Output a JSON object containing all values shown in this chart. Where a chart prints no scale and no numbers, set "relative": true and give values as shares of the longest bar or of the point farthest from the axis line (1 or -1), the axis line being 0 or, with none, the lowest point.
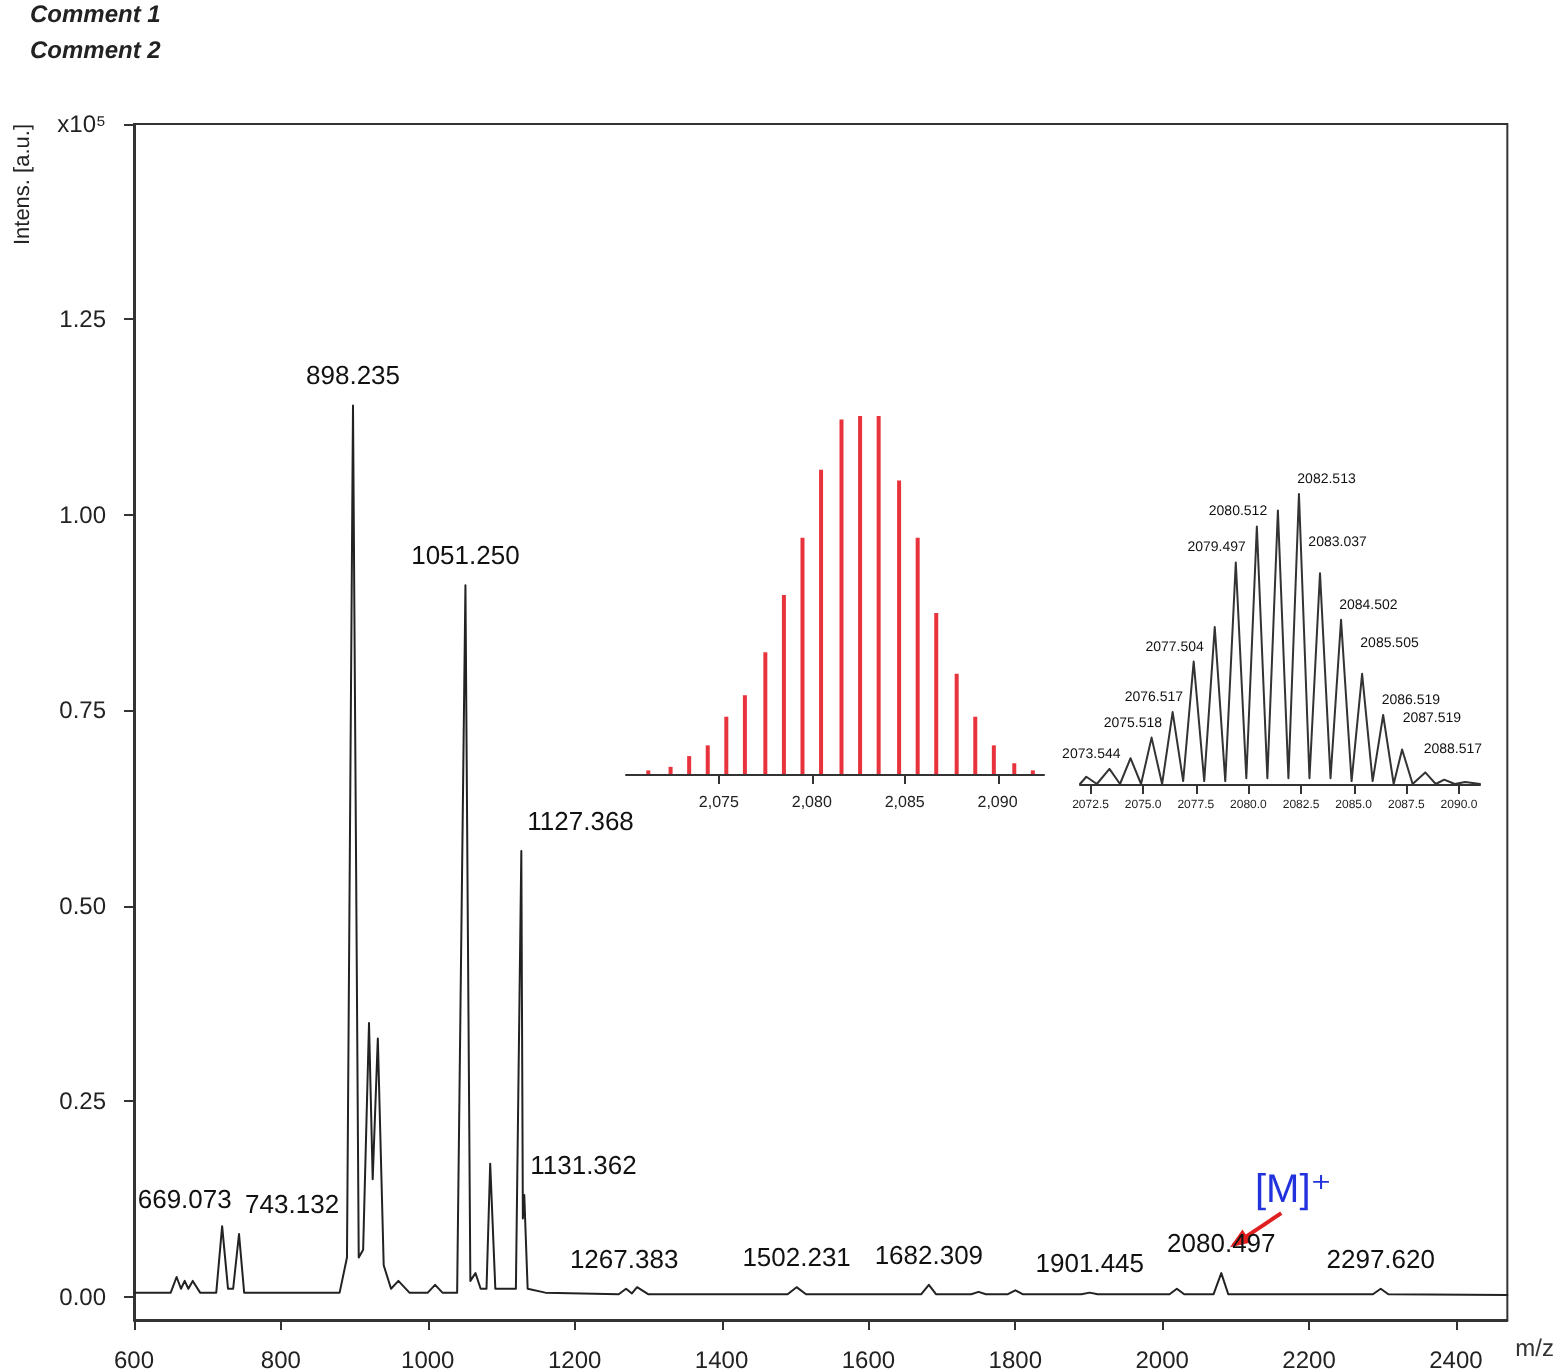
{
  "chart_data": [
    {
      "type": "line",
      "title": "Comment 1",
      "subtitle": "Comment 2",
      "ylabel": "Intens. [a.u.]",
      "xlabel": "m/z",
      "color": "#222222",
      "marker": "none",
      "grid": false,
      "x": [
        600,
        650,
        658,
        664,
        669,
        674,
        680,
        690,
        712,
        720,
        728,
        735,
        743,
        750,
        800,
        880,
        890,
        898.2,
        906,
        912,
        920,
        925,
        932,
        940,
        950,
        960,
        975,
        1000,
        1010,
        1020,
        1040,
        1051.3,
        1058,
        1065,
        1072,
        1080,
        1085,
        1092,
        1120,
        1127.4,
        1129.5,
        1131.4,
        1136,
        1160,
        1260,
        1270,
        1278,
        1285,
        1300,
        1490,
        1502.2,
        1515,
        1672,
        1682.3,
        1692,
        1740,
        1750,
        1760,
        1790,
        1800,
        1810,
        1890,
        1901.4,
        1912,
        2010,
        2020,
        2030,
        2070,
        2080.5,
        2090,
        2287,
        2297.6,
        2308,
        2470
      ],
      "values": [
        0.005,
        0.005,
        0.025,
        0.01,
        0.02,
        0.01,
        0.02,
        0.005,
        0.005,
        0.09,
        0.01,
        0.01,
        0.08,
        0.005,
        0.005,
        0.005,
        0.05,
        1.14,
        0.05,
        0.06,
        0.35,
        0.15,
        0.33,
        0.04,
        0.01,
        0.02,
        0.005,
        0.005,
        0.015,
        0.005,
        0.005,
        0.91,
        0.02,
        0.03,
        0.01,
        0.01,
        0.17,
        0.01,
        0.01,
        0.57,
        0.1,
        0.13,
        0.01,
        0.005,
        0.003,
        0.01,
        0.004,
        0.012,
        0.003,
        0.003,
        0.012,
        0.003,
        0.003,
        0.015,
        0.003,
        0.003,
        0.006,
        0.003,
        0.003,
        0.008,
        0.003,
        0.003,
        0.005,
        0.003,
        0.003,
        0.01,
        0.003,
        0.003,
        0.03,
        0.003,
        0.003,
        0.01,
        0.003,
        0.002
      ],
      "xlim": [
        600,
        2470
      ],
      "xticks": [
        600,
        800,
        1000,
        1200,
        1400,
        1600,
        1800,
        2000,
        2200,
        2400
      ],
      "ylim": [
        -0.03,
        1.5
      ],
      "yticks": [
        {
          "value": 0,
          "label": "0.00"
        },
        {
          "value": 0.25,
          "label": "0.25"
        },
        {
          "value": 0.5,
          "label": "0.50"
        },
        {
          "value": 0.75,
          "label": "0.75"
        },
        {
          "value": 1,
          "label": "1.00"
        },
        {
          "value": 1.25,
          "label": "1.25"
        },
        {
          "value": 1.5,
          "label": "x10⁵"
        }
      ],
      "annotations": [
        {
          "text": "669.073",
          "x": 669.073,
          "y": 0.02
        },
        {
          "text": "743.132",
          "x": 743.132,
          "y": 0.08
        },
        {
          "text": "898.235",
          "x": 898.235,
          "y": 1.14
        },
        {
          "text": "1051.250",
          "x": 1051.25,
          "y": 0.91
        },
        {
          "text": "1127.368",
          "x": 1127.368,
          "y": 0.57
        },
        {
          "text": "1131.362",
          "x": 1131.362,
          "y": 0.13
        },
        {
          "text": "1267.383",
          "x": 1267.383,
          "y": 0.01
        },
        {
          "text": "1502.231",
          "x": 1502.231,
          "y": 0.012
        },
        {
          "text": "1682.309",
          "x": 1682.309,
          "y": 0.015
        },
        {
          "text": "1901.445",
          "x": 1901.445,
          "y": 0.005
        },
        {
          "text": "2080.497",
          "x": 2080.497,
          "y": 0.03
        },
        {
          "text": "2297.620",
          "x": 2297.62,
          "y": 0.01
        },
        {
          "text": "[M]⁺",
          "x": 2080.497,
          "y": 0.03
        }
      ]
    },
    {
      "type": "bar",
      "relative": true,
      "color": "#e8323c",
      "grid": false,
      "x": [
        2071.2,
        2072.4,
        2073.4,
        2074.4,
        2075.4,
        2076.4,
        2077.5,
        2078.5,
        2079.5,
        2080.5,
        2081.6,
        2082.6,
        2083.6,
        2084.7,
        2085.7,
        2086.7,
        2087.8,
        2088.8,
        2089.8,
        2090.9,
        2091.9
      ],
      "values": [
        0.01,
        0.02,
        0.05,
        0.08,
        0.16,
        0.22,
        0.34,
        0.5,
        0.66,
        0.85,
        0.99,
        1,
        1,
        0.82,
        0.66,
        0.45,
        0.28,
        0.16,
        0.08,
        0.03,
        0.01
      ],
      "xlim": [
        2070,
        2092.5
      ],
      "xticks": [
        {
          "value": 2075,
          "label": "2,075"
        },
        {
          "value": 2080,
          "label": "2,080"
        },
        {
          "value": 2085,
          "label": "2,085"
        },
        {
          "value": 2090,
          "label": "2,090"
        }
      ]
    },
    {
      "type": "line",
      "relative": true,
      "color": "#333333",
      "marker": "none",
      "grid": false,
      "x": [
        2072,
        2072.3,
        2072.8,
        2073.4,
        2073.9,
        2074.4,
        2074.9,
        2075.4,
        2075.9,
        2076.4,
        2076.9,
        2077.4,
        2077.9,
        2078.4,
        2078.9,
        2079.4,
        2079.9,
        2080.4,
        2080.9,
        2081.4,
        2081.9,
        2082.4,
        2082.9,
        2083.4,
        2083.9,
        2084.4,
        2084.9,
        2085.4,
        2085.9,
        2086.4,
        2086.9,
        2087.3,
        2087.8,
        2088.4,
        2088.9,
        2089.3,
        2089.8,
        2090.3,
        2091
      ],
      "values": [
        0,
        0.025,
        0,
        0.052,
        0,
        0.089,
        0,
        0.16,
        0,
        0.248,
        0.01,
        0.422,
        0.01,
        0.541,
        0.01,
        0.764,
        0.02,
        0.888,
        0.02,
        0.943,
        0.02,
        1,
        0.02,
        0.727,
        0.02,
        0.566,
        0.01,
        0.38,
        0.01,
        0.238,
        0,
        0.119,
        0,
        0.04,
        0,
        0.015,
        0,
        0.007,
        0
      ],
      "xlim": [
        2072,
        2091
      ],
      "xticks": [
        {
          "value": 2072.5,
          "label": "2072.5"
        },
        {
          "value": 2075,
          "label": "2075.0"
        },
        {
          "value": 2077.5,
          "label": "2077.5"
        },
        {
          "value": 2080,
          "label": "2080.0"
        },
        {
          "value": 2082.5,
          "label": "2082.5"
        },
        {
          "value": 2085,
          "label": "2085.0"
        },
        {
          "value": 2087.5,
          "label": "2087.5"
        },
        {
          "value": 2090,
          "label": "2090.0"
        }
      ],
      "annotations": [
        {
          "text": "2073.544",
          "x": 2073.544,
          "y": 0.052
        },
        {
          "text": "2075.518",
          "x": 2075.518,
          "y": 0.16
        },
        {
          "text": "2076.517",
          "x": 2076.517,
          "y": 0.248
        },
        {
          "text": "2077.504",
          "x": 2077.504,
          "y": 0.422
        },
        {
          "text": "2079.497",
          "x": 2079.497,
          "y": 0.764
        },
        {
          "text": "2080.512",
          "x": 2080.512,
          "y": 0.888
        },
        {
          "text": "2082.513",
          "x": 2082.513,
          "y": 1
        },
        {
          "text": "2083.037",
          "x": 2083.037,
          "y": 0.727
        },
        {
          "text": "2084.502",
          "x": 2084.502,
          "y": 0.566
        },
        {
          "text": "2085.505",
          "x": 2085.505,
          "y": 0.38
        },
        {
          "text": "2086.519",
          "x": 2086.519,
          "y": 0.238
        },
        {
          "text": "2087.519",
          "x": 2087.519,
          "y": 0.119
        },
        {
          "text": "2088.517",
          "x": 2088.517,
          "y": 0.04
        }
      ]
    }
  ]
}
